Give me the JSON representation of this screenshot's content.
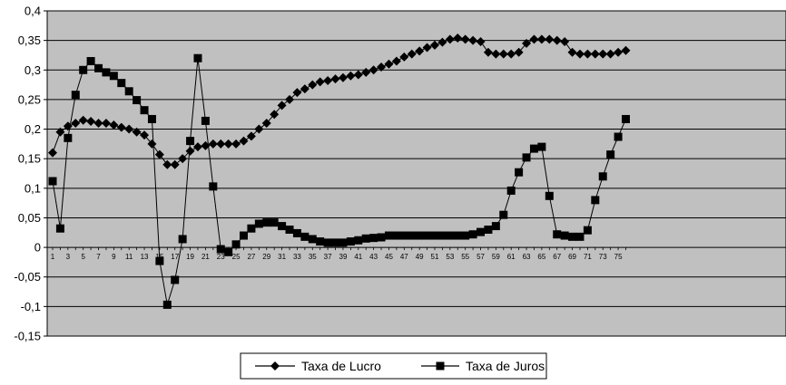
{
  "chart_data": {
    "type": "line",
    "title": "",
    "xlabel": "",
    "ylabel": "",
    "ylim": [
      -0.15,
      0.4
    ],
    "y_ticks": [
      "0,4",
      "0,35",
      "0,3",
      "0,25",
      "0,2",
      "0,15",
      "0,1",
      "0,05",
      "0",
      "-0,05",
      "-0,1",
      "-0,15"
    ],
    "x_tick_labels": [
      "1",
      "3",
      "5",
      "7",
      "9",
      "11",
      "13",
      "15",
      "17",
      "19",
      "21",
      "23",
      "25",
      "27",
      "29",
      "31",
      "33",
      "35",
      "37",
      "39",
      "41",
      "43",
      "45",
      "47",
      "49",
      "51",
      "53",
      "55",
      "57",
      "59",
      "61",
      "63",
      "65",
      "67",
      "69",
      "71",
      "73",
      "75"
    ],
    "x": [
      1,
      2,
      3,
      4,
      5,
      6,
      7,
      8,
      9,
      10,
      11,
      12,
      13,
      14,
      15,
      16,
      17,
      18,
      19,
      20,
      21,
      22,
      23,
      24,
      25,
      26,
      27,
      28,
      29,
      30,
      31,
      32,
      33,
      34,
      35,
      36,
      37,
      38,
      39,
      40,
      41,
      42,
      43,
      44,
      45,
      46,
      47,
      48,
      49,
      50,
      51,
      52,
      53,
      54,
      55,
      56,
      57,
      58,
      59,
      60,
      61,
      62,
      63,
      64,
      65,
      66,
      67,
      68,
      69,
      70,
      71,
      72,
      73,
      74,
      75,
      76
    ],
    "grid": true,
    "background": "#c0c0c0",
    "legend_position": "bottom-center",
    "series": [
      {
        "name": "Taxa de Lucro",
        "marker": "diamond",
        "color": "#000000",
        "values": [
          0.16,
          0.195,
          0.205,
          0.21,
          0.215,
          0.213,
          0.21,
          0.21,
          0.207,
          0.203,
          0.2,
          0.195,
          0.19,
          0.175,
          0.157,
          0.14,
          0.14,
          0.15,
          0.163,
          0.17,
          0.172,
          0.175,
          0.175,
          0.175,
          0.175,
          0.18,
          0.188,
          0.2,
          0.21,
          0.225,
          0.24,
          0.25,
          0.262,
          0.268,
          0.275,
          0.28,
          0.282,
          0.285,
          0.287,
          0.29,
          0.292,
          0.296,
          0.3,
          0.305,
          0.31,
          0.315,
          0.322,
          0.327,
          0.332,
          0.338,
          0.342,
          0.347,
          0.352,
          0.354,
          0.352,
          0.35,
          0.348,
          0.33,
          0.327,
          0.327,
          0.327,
          0.33,
          0.345,
          0.352,
          0.352,
          0.352,
          0.35,
          0.348,
          0.33,
          0.327,
          0.327,
          0.327,
          0.327,
          0.327,
          0.33,
          0.333
        ]
      },
      {
        "name": "Taxa de Juros",
        "marker": "square",
        "color": "#000000",
        "values": [
          0.112,
          0.032,
          0.185,
          0.258,
          0.3,
          0.315,
          0.303,
          0.296,
          0.29,
          0.278,
          0.264,
          0.249,
          0.232,
          0.217,
          -0.023,
          -0.097,
          -0.055,
          0.014,
          0.18,
          0.32,
          0.214,
          0.103,
          -0.003,
          -0.008,
          0.005,
          0.02,
          0.032,
          0.04,
          0.042,
          0.042,
          0.036,
          0.03,
          0.024,
          0.018,
          0.014,
          0.01,
          0.008,
          0.008,
          0.008,
          0.01,
          0.012,
          0.015,
          0.016,
          0.017,
          0.02,
          0.02,
          0.02,
          0.02,
          0.02,
          0.02,
          0.02,
          0.02,
          0.02,
          0.02,
          0.02,
          0.022,
          0.026,
          0.03,
          0.036,
          0.055,
          0.096,
          0.127,
          0.152,
          0.167,
          0.17,
          0.087,
          0.022,
          0.02,
          0.018,
          0.018,
          0.029,
          0.08,
          0.12,
          0.157,
          0.187,
          0.217
        ]
      }
    ]
  }
}
